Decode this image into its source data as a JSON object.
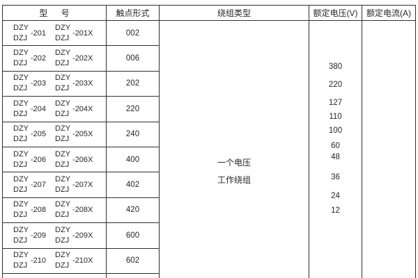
{
  "table": {
    "headers": {
      "model": "型 号",
      "contact_form": "触点形式",
      "winding_type": "绕组类型",
      "rated_voltage": "额定电压(V)",
      "rated_current": "额定电流(A)"
    },
    "rows": [
      {
        "brand_top": "DZY",
        "brand_bottom": "DZJ",
        "suffix": "-201",
        "suffix_x": "-201X",
        "contact_form": "002"
      },
      {
        "brand_top": "DZY",
        "brand_bottom": "DZJ",
        "suffix": "-202",
        "suffix_x": "-202X",
        "contact_form": "006"
      },
      {
        "brand_top": "DZY",
        "brand_bottom": "DZJ",
        "suffix": "-203",
        "suffix_x": "-203X",
        "contact_form": "202"
      },
      {
        "brand_top": "DZY",
        "brand_bottom": "DZJ",
        "suffix": "-204",
        "suffix_x": "-204X",
        "contact_form": "220"
      },
      {
        "brand_top": "DZY",
        "brand_bottom": "DZJ",
        "suffix": "-205",
        "suffix_x": "-205X",
        "contact_form": "240"
      },
      {
        "brand_top": "DZY",
        "brand_bottom": "DZJ",
        "suffix": "-206",
        "suffix_x": "-206X",
        "contact_form": "400"
      },
      {
        "brand_top": "DZY",
        "brand_bottom": "DZJ",
        "suffix": "-207",
        "suffix_x": "-207X",
        "contact_form": "402"
      },
      {
        "brand_top": "DZY",
        "brand_bottom": "DZJ",
        "suffix": "-208",
        "suffix_x": "-208X",
        "contact_form": "420"
      },
      {
        "brand_top": "DZY",
        "brand_bottom": "DZJ",
        "suffix": "-209",
        "suffix_x": "-209X",
        "contact_form": "600"
      },
      {
        "brand_top": "DZY",
        "brand_bottom": "DZJ",
        "suffix": "-210",
        "suffix_x": "-210X",
        "contact_form": "602"
      }
    ],
    "winding_type_lines": [
      "一个电压",
      "工作绕组"
    ],
    "rated_voltages": [
      "380",
      "220",
      "127",
      "110",
      "100",
      "60",
      "48",
      "36",
      "24",
      "12"
    ]
  },
  "colors": {
    "border": "#2e2e2e",
    "text": "#262626",
    "background": "#ffffff"
  }
}
